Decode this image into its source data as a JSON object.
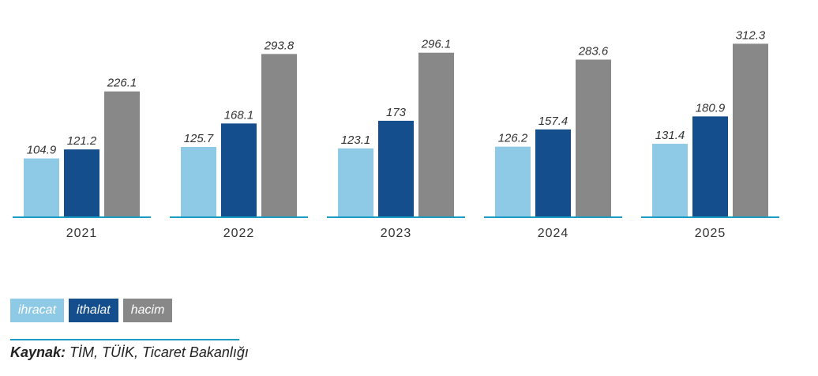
{
  "chart_data": {
    "type": "bar",
    "categories": [
      "2021",
      "2022",
      "2023",
      "2024",
      "2025"
    ],
    "series": [
      {
        "name": "ihracat",
        "color": "#8ecae6",
        "values": [
          104.9,
          125.7,
          123.1,
          126.2,
          131.4
        ],
        "labels": [
          "104.9",
          "125.7",
          "123.1",
          "126.2",
          "131.4"
        ]
      },
      {
        "name": "ithalat",
        "color": "#144e8c",
        "values": [
          121.2,
          168.1,
          173,
          157.4,
          180.9
        ],
        "labels": [
          "121.2",
          "168.1",
          "173",
          "157.4",
          "180.9"
        ]
      },
      {
        "name": "hacim",
        "color": "#888888",
        "values": [
          226.1,
          293.8,
          296.1,
          283.6,
          312.3
        ],
        "labels": [
          "226.1",
          "293.8",
          "296.1",
          "283.6",
          "312.3"
        ]
      }
    ],
    "axis_color": "#1a9cc4",
    "legend_position": "bottom-left",
    "grid": false
  },
  "source": {
    "label": "Kaynak:",
    "text": " TİM, TÜİK, Ticaret Bakanlığı"
  }
}
